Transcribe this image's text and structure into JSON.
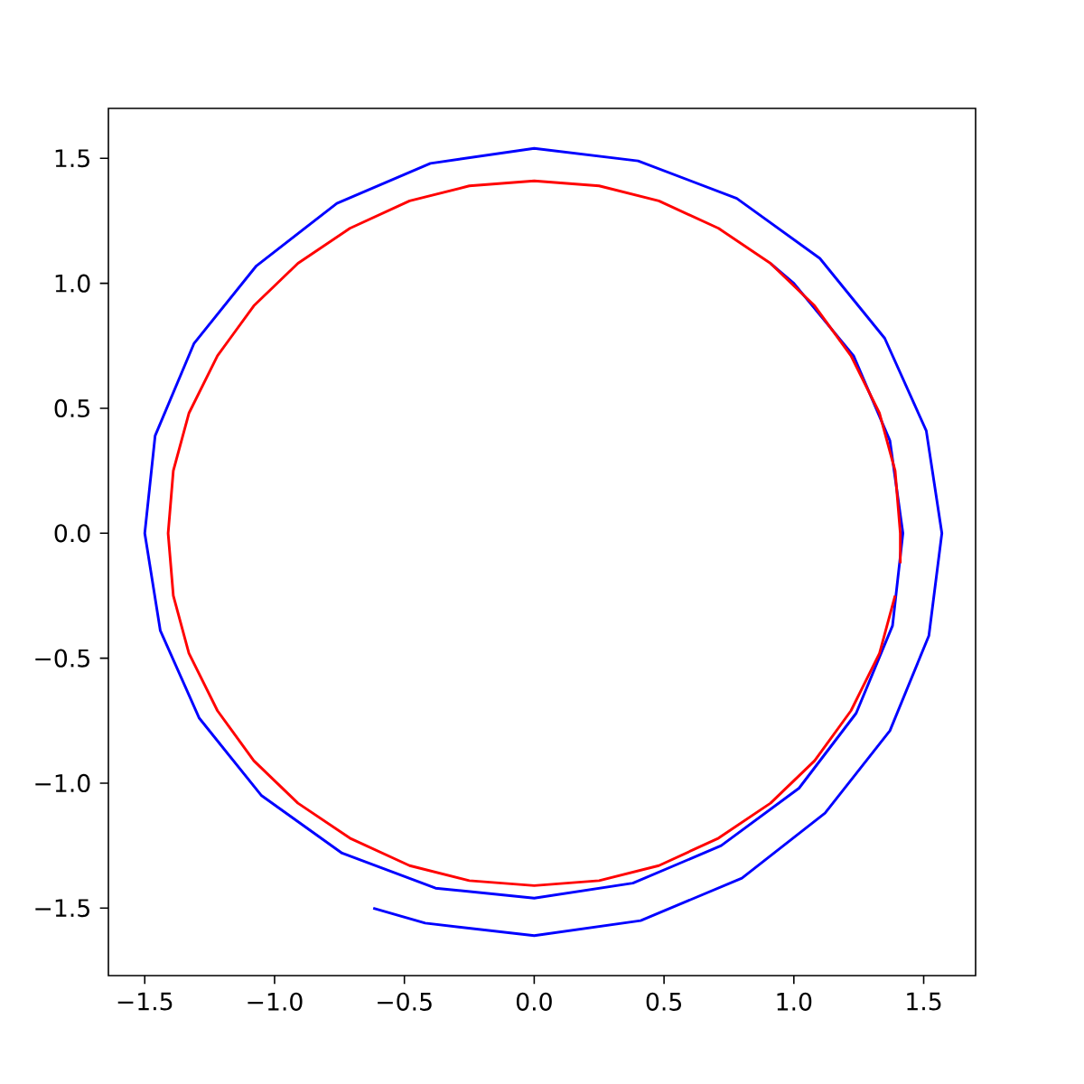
{
  "chart_data": {
    "type": "line",
    "xlim": [
      -1.64,
      1.7
    ],
    "ylim": [
      -1.77,
      1.7
    ],
    "xticks": [
      {
        "value": -1.5,
        "label": "−1.5"
      },
      {
        "value": -1.0,
        "label": "−1.0"
      },
      {
        "value": -0.5,
        "label": "−0.5"
      },
      {
        "value": 0.0,
        "label": "0.0"
      },
      {
        "value": 0.5,
        "label": "0.5"
      },
      {
        "value": 1.0,
        "label": "1.0"
      },
      {
        "value": 1.5,
        "label": "1.5"
      }
    ],
    "yticks": [
      {
        "value": -1.5,
        "label": "−1.5"
      },
      {
        "value": -1.0,
        "label": "−1.0"
      },
      {
        "value": -0.5,
        "label": "−0.5"
      },
      {
        "value": 0.0,
        "label": "0.0"
      },
      {
        "value": 0.5,
        "label": "0.5"
      },
      {
        "value": 1.0,
        "label": "1.0"
      },
      {
        "value": 1.5,
        "label": "1.5"
      }
    ],
    "marker": "none",
    "line_style": "solid",
    "series": [
      {
        "color": "#0000ff",
        "x": [
          -0.62,
          -0.42,
          0.0,
          0.41,
          0.8,
          1.12,
          1.37,
          1.52,
          1.57,
          1.51,
          1.35,
          1.1,
          0.78,
          0.4,
          0.0,
          -0.4,
          -0.76,
          -1.07,
          -1.31,
          -1.46,
          -1.5,
          -1.44,
          -1.29,
          -1.05,
          -0.74,
          -0.38,
          0.0,
          0.38,
          0.72,
          1.02,
          1.24,
          1.38,
          1.42,
          1.37,
          1.23,
          1.0,
          0.91
        ],
        "values": [
          -1.5,
          -1.56,
          -1.61,
          -1.55,
          -1.38,
          -1.12,
          -0.79,
          -0.41,
          0.0,
          0.41,
          0.78,
          1.1,
          1.34,
          1.49,
          1.54,
          1.48,
          1.32,
          1.07,
          0.76,
          0.39,
          0.0,
          -0.39,
          -0.74,
          -1.05,
          -1.28,
          -1.42,
          -1.46,
          -1.4,
          -1.25,
          -1.02,
          -0.72,
          -0.37,
          0.0,
          0.37,
          0.71,
          1.0,
          1.08
        ]
      },
      {
        "color": "#ff0000",
        "x": [
          1.41,
          1.41,
          1.39,
          1.33,
          1.22,
          1.08,
          0.91,
          0.71,
          0.48,
          0.25,
          0.0,
          -0.25,
          -0.48,
          -0.71,
          -0.91,
          -1.08,
          -1.22,
          -1.33,
          -1.39,
          -1.41,
          -1.39,
          -1.33,
          -1.22,
          -1.08,
          -0.91,
          -0.71,
          -0.48,
          -0.25,
          0.0,
          0.25,
          0.48,
          0.71,
          0.91,
          1.08,
          1.22,
          1.33,
          1.39
        ],
        "values": [
          -0.12,
          0.0,
          0.25,
          0.48,
          0.71,
          0.91,
          1.08,
          1.22,
          1.33,
          1.39,
          1.41,
          1.39,
          1.33,
          1.22,
          1.08,
          0.91,
          0.71,
          0.48,
          0.25,
          0.0,
          -0.25,
          -0.48,
          -0.71,
          -0.91,
          -1.08,
          -1.22,
          -1.33,
          -1.39,
          -1.41,
          -1.39,
          -1.33,
          -1.22,
          -1.08,
          -0.91,
          -0.71,
          -0.48,
          -0.25
        ]
      }
    ]
  }
}
